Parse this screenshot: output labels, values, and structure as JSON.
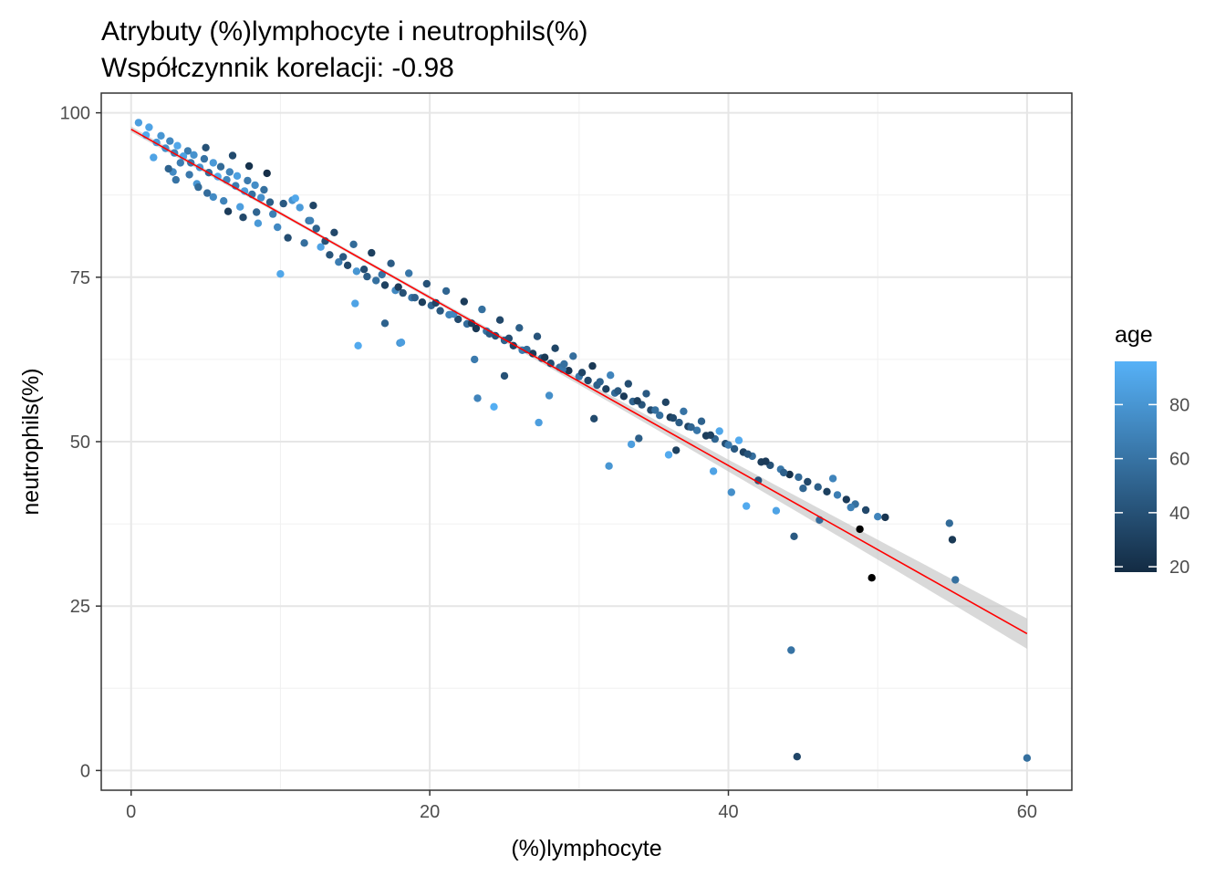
{
  "chart_data": {
    "type": "scatter",
    "title": "Atrybuty (%)lymphocyte i neutrophils(%)",
    "subtitle": "Współczynnik korelacji: -0.98",
    "xlabel": "(%)lymphocyte",
    "ylabel": "neutrophils(%)",
    "xlim": [
      -2,
      63
    ],
    "ylim": [
      -3,
      103
    ],
    "x_ticks": [
      "0",
      "20",
      "40",
      "60"
    ],
    "y_ticks": [
      "0",
      "25",
      "50",
      "75",
      "100"
    ],
    "x_tick_values": [
      0,
      20,
      40,
      60
    ],
    "y_tick_values": [
      0,
      25,
      50,
      75,
      100
    ],
    "grid": true,
    "legend": {
      "title": "age",
      "position": "right",
      "range": [
        18,
        96
      ],
      "ticks": [
        "20",
        "40",
        "60",
        "80"
      ],
      "tick_values": [
        20,
        40,
        60,
        80
      ],
      "low_color": "#132b43",
      "high_color": "#56b1f7"
    },
    "regression": {
      "color": "#ff0000",
      "band_color": "#bfbfbf",
      "x_start": 0,
      "y_start": 97.5,
      "x_end": 60,
      "y_end": 20.8,
      "se_end": 2.3,
      "se_min": 0.25
    },
    "series": [
      {
        "x": [
          0.5,
          1.2,
          2.0,
          2.6,
          3.1,
          3.8,
          4.2,
          4.9,
          5.5,
          6.0,
          6.6,
          7.1,
          7.8,
          8.3,
          8.9,
          1.0,
          1.7,
          2.3,
          2.9,
          3.5,
          4.0,
          4.6,
          5.2,
          5.8,
          6.4,
          7.0,
          7.6,
          8.1,
          8.7,
          9.3,
          1.5,
          2.8,
          3.9,
          4.4,
          5.1,
          6.2,
          7.3,
          8.4,
          9.5,
          10.2,
          10.8,
          11.3,
          11.9,
          12.4,
          9.8,
          10.5,
          11.6,
          12.7,
          13.3,
          13.9,
          14.5,
          15.1,
          15.8,
          16.4,
          17.0,
          17.7,
          18.2,
          18.8,
          19.5,
          20.1,
          20.7,
          21.3,
          21.9,
          22.5,
          23.1,
          23.8,
          24.4,
          25.0,
          25.6,
          26.2,
          26.9,
          27.5,
          28.1,
          28.7,
          29.3,
          30.0,
          30.6,
          31.2,
          31.8,
          32.4,
          33.0,
          33.6,
          34.2,
          34.8,
          35.4,
          36.1,
          36.7,
          37.3,
          37.9,
          38.5,
          39.1,
          39.8,
          40.4,
          41.0,
          41.6,
          42.2,
          42.8,
          43.5,
          44.1,
          44.7,
          45.3,
          46.0,
          46.6,
          47.3,
          47.9,
          48.5,
          49.2,
          50.0,
          13.0,
          14.2,
          15.6,
          16.8,
          17.9,
          19.0,
          20.4,
          21.6,
          22.8,
          24.0,
          25.3,
          26.5,
          27.7,
          28.9,
          30.2,
          31.4,
          32.6,
          33.9,
          35.1,
          36.3,
          37.5,
          38.8,
          40.0,
          41.3,
          42.5,
          43.7,
          12.0,
          13.6,
          14.9,
          16.1,
          17.4,
          18.6,
          19.8,
          21.1,
          22.3,
          23.5,
          24.7,
          26.0,
          27.2,
          28.4,
          29.6,
          30.9,
          32.1,
          33.3,
          34.5,
          35.8,
          37.0,
          38.2,
          39.4,
          40.7,
          11.0,
          12.2,
          15.0,
          17.0,
          18.0,
          23.0,
          25.0,
          28.0,
          31.0,
          34.0,
          36.0,
          39.0,
          10.0,
          15.2,
          18.1,
          23.2,
          24.3,
          27.3,
          29.0,
          32.0,
          33.5,
          36.5,
          40.2,
          41.2,
          42.0,
          43.2,
          44.4,
          45.0,
          46.1,
          47.0,
          48.2,
          3.0,
          4.5,
          5.5,
          6.5,
          7.5,
          8.5,
          2.5,
          3.3,
          5.0,
          6.8,
          7.9,
          9.1,
          50.5,
          54.8,
          55.0,
          55.2,
          44.2,
          44.6,
          60.0,
          49.6,
          48.8
        ],
        "y": [
          98.5,
          97.8,
          96.5,
          95.7,
          95.0,
          94.2,
          93.6,
          93.0,
          92.4,
          91.8,
          91.0,
          90.4,
          89.7,
          89.0,
          88.3,
          96.6,
          95.5,
          94.6,
          93.9,
          93.4,
          92.4,
          91.7,
          90.9,
          90.3,
          89.8,
          88.9,
          88.1,
          87.6,
          87.1,
          86.4,
          93.2,
          91.0,
          90.6,
          89.2,
          87.8,
          86.6,
          85.7,
          84.9,
          84.6,
          86.2,
          86.7,
          85.6,
          83.6,
          82.4,
          82.6,
          81.0,
          80.2,
          79.6,
          78.4,
          77.3,
          76.8,
          75.9,
          75.1,
          74.5,
          73.8,
          73.0,
          72.6,
          71.9,
          71.2,
          70.7,
          69.9,
          69.3,
          68.6,
          67.9,
          67.2,
          66.8,
          66.1,
          65.4,
          64.6,
          63.9,
          63.4,
          62.7,
          61.9,
          61.3,
          60.8,
          59.9,
          59.3,
          58.6,
          58.0,
          57.4,
          56.9,
          56.1,
          55.6,
          54.8,
          54.0,
          53.7,
          52.9,
          52.3,
          51.7,
          50.9,
          50.4,
          49.7,
          48.9,
          48.4,
          47.8,
          46.9,
          46.4,
          45.8,
          45.0,
          44.6,
          43.9,
          43.1,
          42.4,
          41.9,
          41.2,
          40.5,
          39.6,
          38.6,
          80.5,
          78.1,
          76.2,
          75.4,
          73.5,
          71.9,
          71.1,
          69.4,
          68.0,
          66.4,
          65.7,
          64.0,
          62.8,
          61.0,
          60.5,
          59.1,
          57.7,
          56.2,
          54.8,
          53.6,
          52.2,
          51.0,
          49.5,
          48.1,
          47.0,
          45.3,
          83.6,
          81.8,
          80.0,
          78.7,
          77.1,
          75.6,
          74.0,
          72.9,
          71.3,
          70.1,
          68.5,
          67.3,
          66.0,
          64.2,
          63.0,
          61.5,
          60.1,
          58.8,
          57.3,
          56.0,
          54.6,
          53.1,
          51.6,
          50.2,
          87.0,
          85.9,
          71.0,
          68.0,
          65.0,
          62.5,
          60.0,
          57.0,
          53.5,
          50.5,
          48.0,
          45.5,
          75.5,
          64.6,
          65.1,
          56.6,
          55.3,
          52.9,
          61.8,
          46.3,
          49.6,
          48.7,
          42.3,
          40.2,
          44.1,
          39.5,
          35.6,
          42.9,
          38.1,
          44.4,
          40.0,
          89.8,
          88.7,
          87.2,
          85.0,
          84.1,
          83.2,
          91.5,
          92.4,
          94.7,
          93.5,
          91.9,
          90.8,
          38.5,
          37.6,
          35.1,
          29.0,
          18.3,
          2.1,
          1.9,
          29.3,
          36.7
        ],
        "age": [
          85,
          88,
          80,
          72,
          90,
          65,
          78,
          60,
          82,
          55,
          70,
          86,
          64,
          75,
          58,
          92,
          83,
          76,
          68,
          87,
          62,
          79,
          54,
          90,
          71,
          66,
          84,
          59,
          77,
          48,
          88,
          74,
          63,
          81,
          56,
          69,
          85,
          52,
          67,
          45,
          79,
          83,
          61,
          50,
          73,
          38,
          57,
          88,
          42,
          66,
          35,
          80,
          47,
          58,
          31,
          72,
          40,
          62,
          29,
          52,
          44,
          69,
          36,
          56,
          25,
          60,
          41,
          50,
          33,
          65,
          28,
          46,
          38,
          57,
          24,
          61,
          35,
          48,
          30,
          55,
          27,
          50,
          42,
          36,
          58,
          26,
          47,
          33,
          62,
          29,
          52,
          38,
          45,
          31,
          57,
          28,
          40,
          62,
          22,
          54,
          35,
          48,
          30,
          66,
          27,
          58,
          35,
          70,
          40,
          45,
          38,
          60,
          28,
          49,
          34,
          72,
          30,
          46,
          38,
          55,
          26,
          62,
          33,
          50,
          44,
          29,
          58,
          36,
          52,
          31,
          64,
          42,
          27,
          49,
          68,
          35,
          55,
          30,
          46,
          62,
          40,
          52,
          28,
          58,
          35,
          48,
          42,
          33,
          57,
          26,
          70,
          38,
          45,
          32,
          60,
          50,
          90,
          92,
          91,
          33,
          88,
          50,
          80,
          64,
          40,
          76,
          36,
          48,
          92,
          88,
          90,
          92,
          85,
          70,
          94,
          85,
          58,
          80,
          85,
          30,
          76,
          92,
          40,
          88,
          45,
          52,
          56,
          70,
          68,
          60,
          55,
          74,
          28,
          35,
          82,
          50,
          66,
          40,
          36,
          22,
          20,
          24,
          55,
          26,
          58,
          60,
          34,
          58
        ]
      }
    ]
  }
}
